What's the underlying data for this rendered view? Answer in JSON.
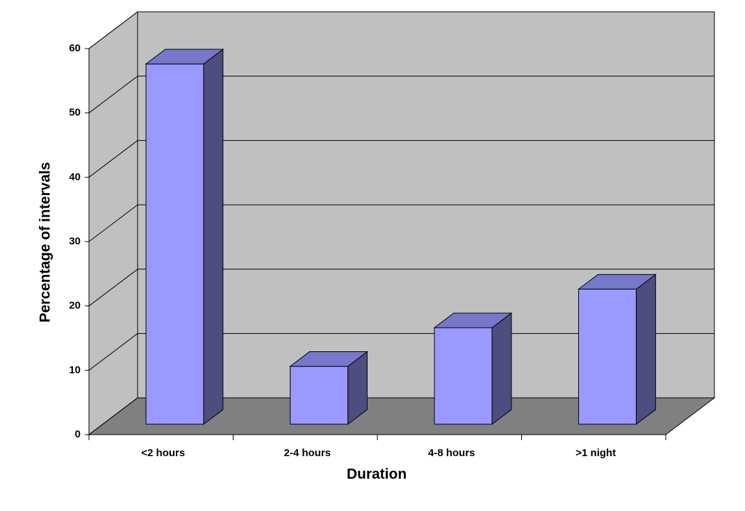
{
  "chart_data": {
    "type": "bar3d",
    "x_label": "Duration",
    "y_label": "Percentage of intervals",
    "categories": [
      "<2 hours",
      "2-4 hours",
      "4-8 hours",
      ">1 night"
    ],
    "values": [
      56,
      9,
      15,
      21
    ],
    "color": "#9999ff",
    "ylim": [
      0,
      60
    ],
    "yticks": [
      0,
      10,
      20,
      30,
      40,
      50,
      60
    ],
    "grid": true
  }
}
